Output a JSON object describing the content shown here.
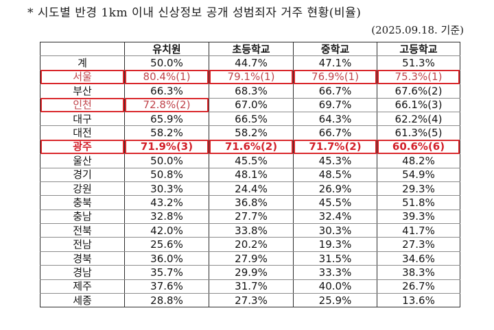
{
  "document": {
    "title": "* 시도별 반경 1km 이내 신상정보 공개 성범죄자 거주 현황(비율)",
    "date_note": "(2025.09.18. 기준)"
  },
  "colors": {
    "highlight_box": "#d9262a",
    "highlight_text_light": "#c0434a",
    "highlight_text_strong": "#d3202a",
    "text": "#111111",
    "grid": "#2a2a2a"
  },
  "table": {
    "headers": [
      "",
      "유치원",
      "초등학교",
      "중학교",
      "고등학교"
    ],
    "rows": [
      {
        "region": "계",
        "values": [
          "50.0%",
          "44.7%",
          "47.1%",
          "51.3%"
        ],
        "highlight": [
          false,
          false,
          false,
          false,
          false
        ],
        "style": "normal"
      },
      {
        "region": "서울",
        "values": [
          "80.4%(1)",
          "79.1%(1)",
          "76.9%(1)",
          "75.3%(1)"
        ],
        "highlight": [
          true,
          true,
          true,
          true,
          true
        ],
        "style": "light"
      },
      {
        "region": "부산",
        "values": [
          "66.3%",
          "68.3%",
          "66.7%",
          "67.6%(2)"
        ],
        "highlight": [
          false,
          false,
          false,
          false,
          false
        ],
        "style": "normal"
      },
      {
        "region": "인천",
        "values": [
          "72.8%(2)",
          "67.0%",
          "69.7%",
          "66.1%(3)"
        ],
        "highlight": [
          true,
          true,
          false,
          false,
          false
        ],
        "style": "light"
      },
      {
        "region": "대구",
        "values": [
          "65.9%",
          "66.5%",
          "64.3%",
          "62.2%(4)"
        ],
        "highlight": [
          false,
          false,
          false,
          false,
          false
        ],
        "style": "normal"
      },
      {
        "region": "대전",
        "values": [
          "58.2%",
          "58.2%",
          "66.7%",
          "61.3%(5)"
        ],
        "highlight": [
          false,
          false,
          false,
          false,
          false
        ],
        "style": "normal"
      },
      {
        "region": "광주",
        "values": [
          "71.9%(3)",
          "71.6%(2)",
          "71.7%(2)",
          "60.6%(6)"
        ],
        "highlight": [
          true,
          true,
          true,
          true,
          true
        ],
        "style": "strong"
      },
      {
        "region": "울산",
        "values": [
          "50.0%",
          "45.5%",
          "45.3%",
          "48.2%"
        ],
        "highlight": [
          false,
          false,
          false,
          false,
          false
        ],
        "style": "normal"
      },
      {
        "region": "경기",
        "values": [
          "50.8%",
          "48.1%",
          "48.5%",
          "54.9%"
        ],
        "highlight": [
          false,
          false,
          false,
          false,
          false
        ],
        "style": "normal"
      },
      {
        "region": "강원",
        "values": [
          "30.3%",
          "24.4%",
          "26.9%",
          "29.3%"
        ],
        "highlight": [
          false,
          false,
          false,
          false,
          false
        ],
        "style": "normal"
      },
      {
        "region": "충북",
        "values": [
          "43.2%",
          "36.8%",
          "45.5%",
          "51.8%"
        ],
        "highlight": [
          false,
          false,
          false,
          false,
          false
        ],
        "style": "normal"
      },
      {
        "region": "충남",
        "values": [
          "32.8%",
          "27.7%",
          "32.4%",
          "39.3%"
        ],
        "highlight": [
          false,
          false,
          false,
          false,
          false
        ],
        "style": "normal"
      },
      {
        "region": "전북",
        "values": [
          "42.0%",
          "33.8%",
          "30.3%",
          "41.7%"
        ],
        "highlight": [
          false,
          false,
          false,
          false,
          false
        ],
        "style": "normal"
      },
      {
        "region": "전남",
        "values": [
          "25.6%",
          "20.2%",
          "19.3%",
          "27.3%"
        ],
        "highlight": [
          false,
          false,
          false,
          false,
          false
        ],
        "style": "normal"
      },
      {
        "region": "경북",
        "values": [
          "36.0%",
          "27.9%",
          "31.5%",
          "34.6%"
        ],
        "highlight": [
          false,
          false,
          false,
          false,
          false
        ],
        "style": "normal"
      },
      {
        "region": "경남",
        "values": [
          "35.7%",
          "29.9%",
          "33.3%",
          "38.3%"
        ],
        "highlight": [
          false,
          false,
          false,
          false,
          false
        ],
        "style": "normal"
      },
      {
        "region": "제주",
        "values": [
          "37.6%",
          "31.7%",
          "40.0%",
          "26.7%"
        ],
        "highlight": [
          false,
          false,
          false,
          false,
          false
        ],
        "style": "normal"
      },
      {
        "region": "세종",
        "values": [
          "28.8%",
          "27.3%",
          "25.9%",
          "13.6%"
        ],
        "highlight": [
          false,
          false,
          false,
          false,
          false
        ],
        "style": "normal"
      }
    ]
  }
}
